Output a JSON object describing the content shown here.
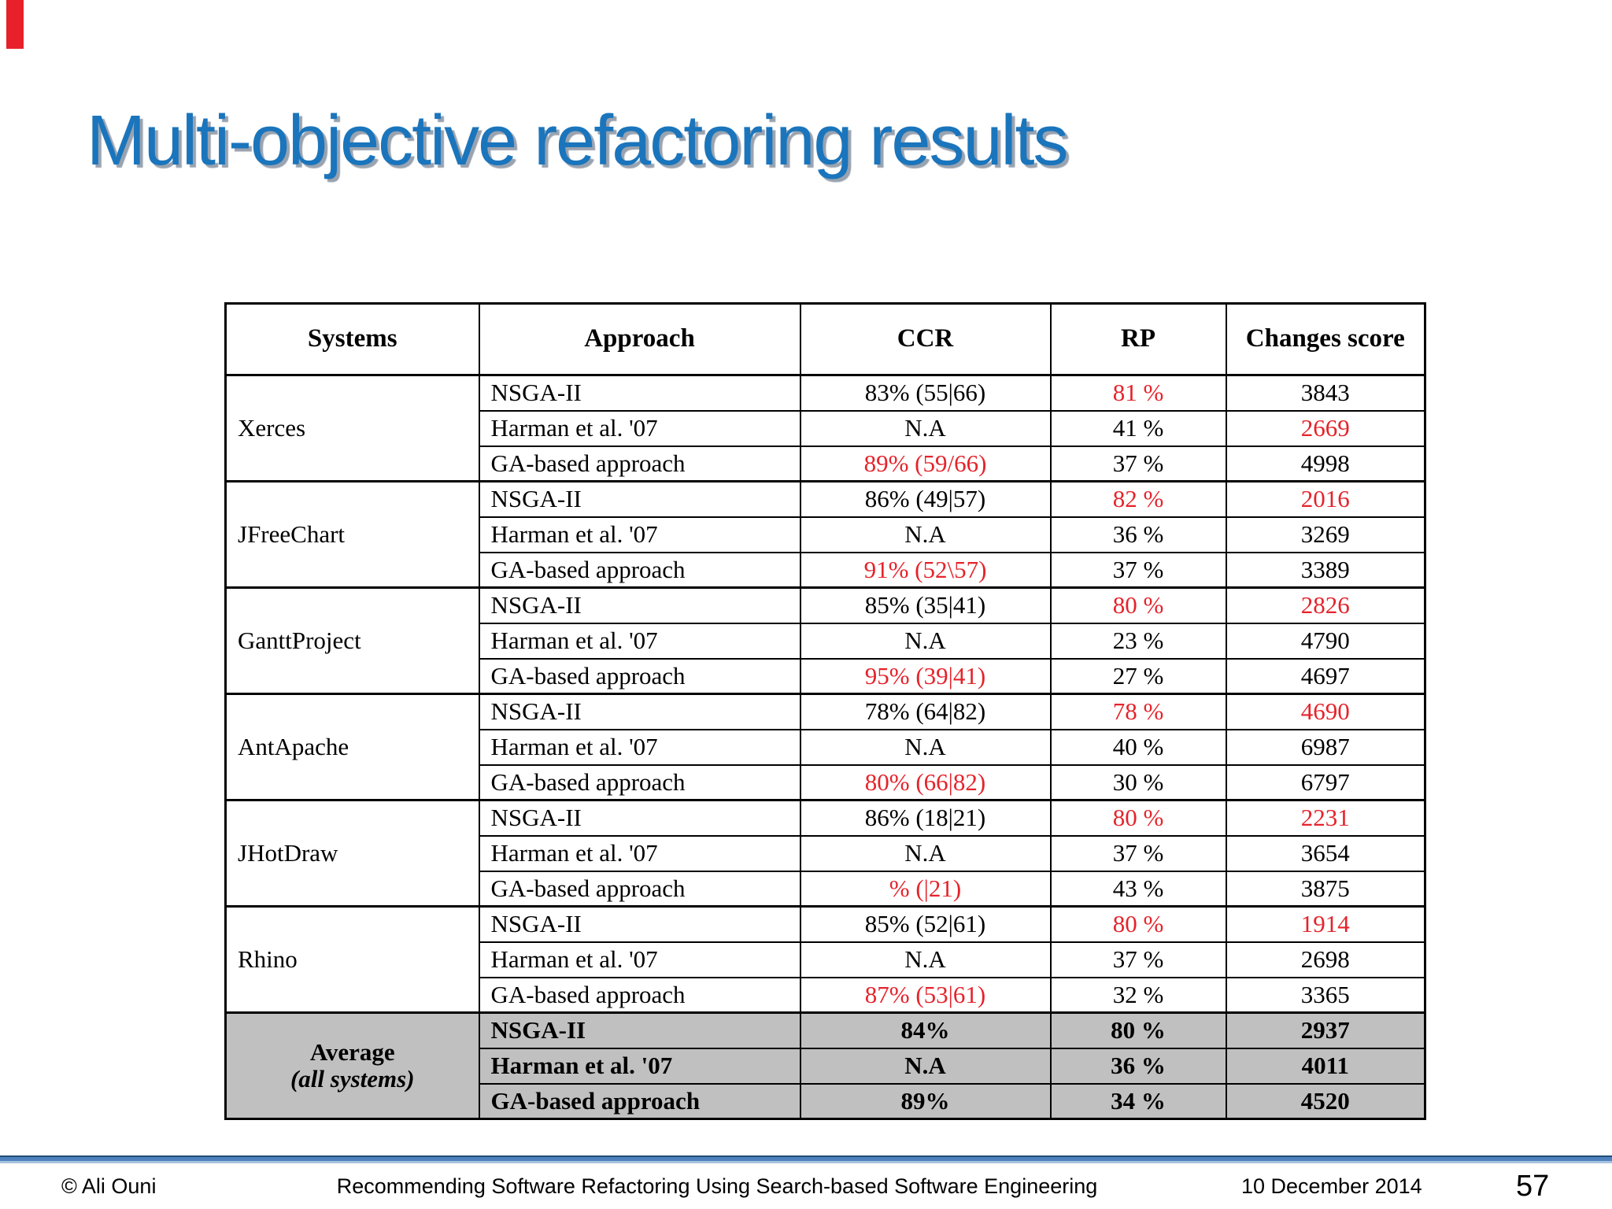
{
  "slide": {
    "title": "Multi-objective refactoring results",
    "title_color": "#1b75bc",
    "accent_bar_color": "#e8202a",
    "highlight_color": "#e5232b",
    "average_row_background": "#c0c0c0",
    "footer_divider_color": "#4f81bd"
  },
  "table": {
    "headers": [
      "Systems",
      "Approach",
      "CCR",
      "RP",
      "Changes score"
    ],
    "groups": [
      {
        "system": "Xerces",
        "rows": [
          {
            "approach": "NSGA-II",
            "ccr": "83%  (55|66)",
            "ccr_red": false,
            "rp": "81 %",
            "rp_red": true,
            "score": "3843",
            "score_red": false
          },
          {
            "approach": "Harman et al. '07",
            "ccr": "N.A",
            "ccr_red": false,
            "rp": "41 %",
            "rp_red": false,
            "score": "2669",
            "score_red": true
          },
          {
            "approach": "GA-based approach",
            "ccr": "89% (59/66)",
            "ccr_red": true,
            "rp": "37 %",
            "rp_red": false,
            "score": "4998",
            "score_red": false
          }
        ]
      },
      {
        "system": "JFreeChart",
        "rows": [
          {
            "approach": "NSGA-II",
            "ccr": "86%  (49|57)",
            "ccr_red": false,
            "rp": "82 %",
            "rp_red": true,
            "score": "2016",
            "score_red": true
          },
          {
            "approach": "Harman et al. '07",
            "ccr": "N.A",
            "ccr_red": false,
            "rp": "36 %",
            "rp_red": false,
            "score": "3269",
            "score_red": false
          },
          {
            "approach": "GA-based approach",
            "ccr": "91% (52\\57)",
            "ccr_red": true,
            "rp": "37 %",
            "rp_red": false,
            "score": "3389",
            "score_red": false
          }
        ]
      },
      {
        "system": "GanttProject",
        "rows": [
          {
            "approach": "NSGA-II",
            "ccr": "85%  (35|41)",
            "ccr_red": false,
            "rp": "80 %",
            "rp_red": true,
            "score": "2826",
            "score_red": true
          },
          {
            "approach": "Harman et al. '07",
            "ccr": "N.A",
            "ccr_red": false,
            "rp": "23 %",
            "rp_red": false,
            "score": "4790",
            "score_red": false
          },
          {
            "approach": "GA-based approach",
            "ccr": "95%  (39|41)",
            "ccr_red": true,
            "rp": "27 %",
            "rp_red": false,
            "score": "4697",
            "score_red": false
          }
        ]
      },
      {
        "system": "AntApache",
        "rows": [
          {
            "approach": "NSGA-II",
            "ccr": "78%  (64|82)",
            "ccr_red": false,
            "rp": "78 %",
            "rp_red": true,
            "score": "4690",
            "score_red": true
          },
          {
            "approach": "Harman et al. '07",
            "ccr": "N.A",
            "ccr_red": false,
            "rp": "40 %",
            "rp_red": false,
            "score": "6987",
            "score_red": false
          },
          {
            "approach": "GA-based approach",
            "ccr": "80%  (66|82)",
            "ccr_red": true,
            "rp": "30 %",
            "rp_red": false,
            "score": "6797",
            "score_red": false
          }
        ]
      },
      {
        "system": "JHotDraw",
        "rows": [
          {
            "approach": "NSGA-II",
            "ccr": "86%  (18|21)",
            "ccr_red": false,
            "rp": "80 %",
            "rp_red": true,
            "score": "2231",
            "score_red": true
          },
          {
            "approach": "Harman et al. '07",
            "ccr": "N.A",
            "ccr_red": false,
            "rp": "37 %",
            "rp_red": false,
            "score": "3654",
            "score_red": false
          },
          {
            "approach": "GA-based approach",
            "ccr": "% (|21)",
            "ccr_red": true,
            "rp": "43 %",
            "rp_red": false,
            "score": "3875",
            "score_red": false
          }
        ]
      },
      {
        "system": "Rhino",
        "rows": [
          {
            "approach": "NSGA-II",
            "ccr": "85%  (52|61)",
            "ccr_red": false,
            "rp": "80 %",
            "rp_red": true,
            "score": "1914",
            "score_red": true
          },
          {
            "approach": "Harman et al. '07",
            "ccr": "N.A",
            "ccr_red": false,
            "rp": "37 %",
            "rp_red": false,
            "score": "2698",
            "score_red": false
          },
          {
            "approach": "GA-based approach",
            "ccr": "87%  (53|61)",
            "ccr_red": true,
            "rp": "32 %",
            "rp_red": false,
            "score": "3365",
            "score_red": false
          }
        ]
      }
    ],
    "average": {
      "label_line1": "Average",
      "label_line2": "(all systems)",
      "rows": [
        {
          "approach": "NSGA-II",
          "ccr": "84%",
          "rp": "80 %",
          "score": "2937"
        },
        {
          "approach": "Harman et al. '07",
          "ccr": "N.A",
          "rp": "36 %",
          "score": "4011"
        },
        {
          "approach": "GA-based approach",
          "ccr": "89%",
          "rp": "34 %",
          "score": "4520"
        }
      ]
    }
  },
  "footer": {
    "copyright": "© Ali Ouni",
    "center": "Recommending Software Refactoring Using Search-based Software Engineering",
    "date": "10 December 2014",
    "page": "57"
  }
}
